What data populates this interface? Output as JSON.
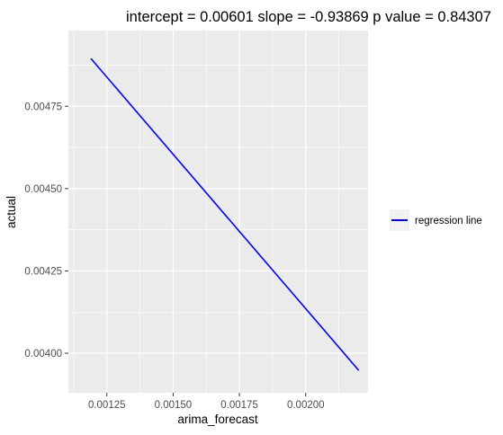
{
  "chart_data": {
    "type": "line",
    "title": "intercept = 0.00601 slope = -0.93869 p value = 0.84307",
    "xlabel": "arima_forecast",
    "ylabel": "actual",
    "xlim": [
      0.001105,
      0.002235
    ],
    "ylim": [
      0.00388,
      0.00498
    ],
    "x_ticks": [
      0.00125,
      0.0015,
      0.00175,
      0.002
    ],
    "x_tick_labels": [
      "0.00125",
      "0.00150",
      "0.00175",
      "0.00200"
    ],
    "y_ticks": [
      0.004,
      0.00425,
      0.0045,
      0.00475
    ],
    "y_tick_labels": [
      "0.00400",
      "0.00425",
      "0.00450",
      "0.00475"
    ],
    "grid": true,
    "legend_position": "right",
    "series": [
      {
        "name": "regression line",
        "color": "#0000ff",
        "x": [
          0.00119,
          0.0022
        ],
        "y": [
          0.004895,
          0.003948
        ]
      }
    ]
  }
}
